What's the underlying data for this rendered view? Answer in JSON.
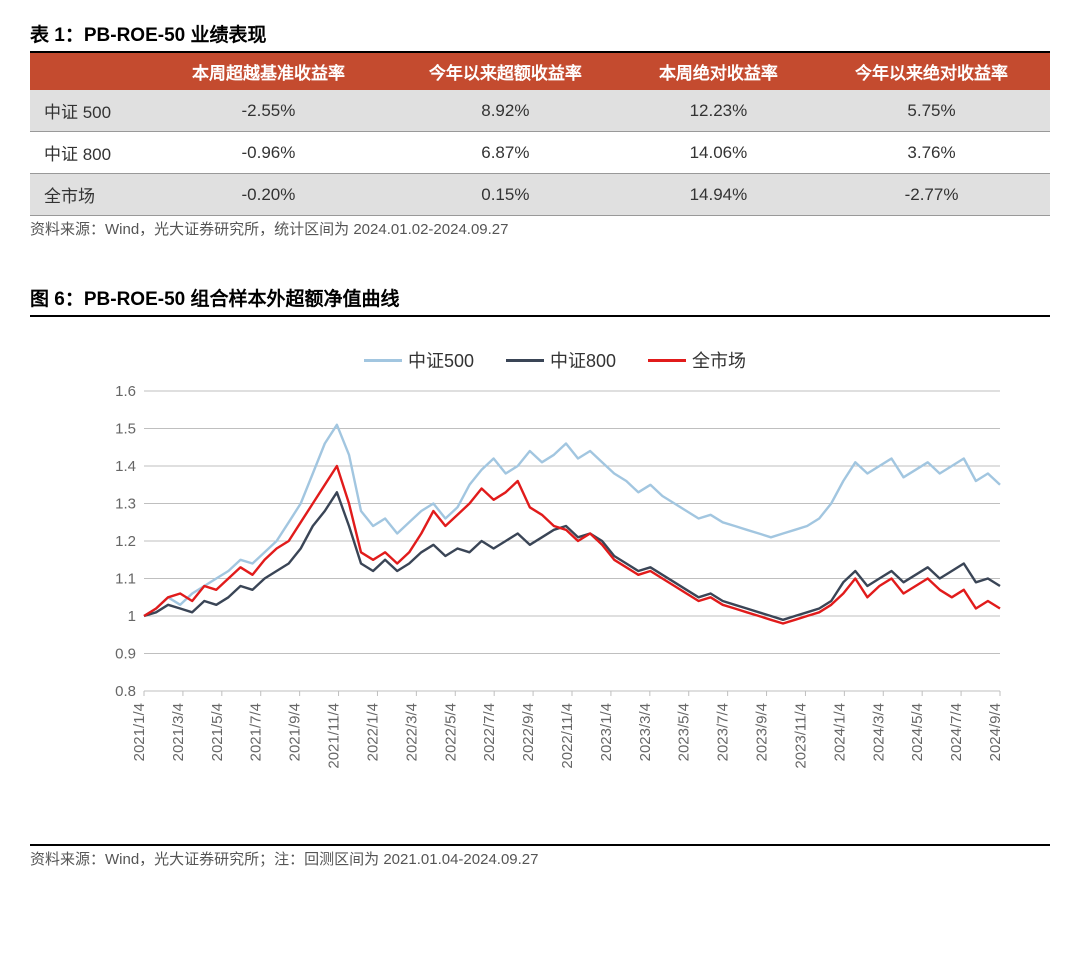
{
  "table": {
    "title": "表 1：PB-ROE-50 业绩表现",
    "header_bg": "#c44b2f",
    "header_color": "#ffffff",
    "row_gray_bg": "#e0e0e0",
    "border_color": "#999999",
    "columns": [
      "",
      "本周超越基准收益率",
      "今年以来超额收益率",
      "本周绝对收益率",
      "今年以来绝对收益率"
    ],
    "rows": [
      {
        "label": "中证 500",
        "cells": [
          "-2.55%",
          "8.92%",
          "12.23%",
          "5.75%"
        ],
        "bg": "gray"
      },
      {
        "label": "中证 800",
        "cells": [
          "-0.96%",
          "6.87%",
          "14.06%",
          "3.76%"
        ],
        "bg": "white"
      },
      {
        "label": "全市场",
        "cells": [
          "-0.20%",
          "0.15%",
          "14.94%",
          "-2.77%"
        ],
        "bg": "gray"
      }
    ],
    "source": "资料来源：Wind，光大证券研究所，统计区间为 2024.01.02-2024.09.27"
  },
  "chart": {
    "title": "图 6：PB-ROE-50 组合样本外超额净值曲线",
    "type": "line",
    "background_color": "#ffffff",
    "grid_color": "#bfbfbf",
    "axis_color": "#868686",
    "axis_fontsize": 15,
    "legend_fontsize": 18,
    "line_width": 2.4,
    "ylim": [
      0.8,
      1.6
    ],
    "ytick_step": 0.1,
    "yticks": [
      "0.8",
      "0.9",
      "1",
      "1.1",
      "1.2",
      "1.3",
      "1.4",
      "1.5",
      "1.6"
    ],
    "x_labels": [
      "2021/1/4",
      "2021/3/4",
      "2021/5/4",
      "2021/7/4",
      "2021/9/4",
      "2021/11/4",
      "2022/1/4",
      "2022/3/4",
      "2022/5/4",
      "2022/7/4",
      "2022/9/4",
      "2022/11/4",
      "2023/1/4",
      "2023/3/4",
      "2023/5/4",
      "2023/7/4",
      "2023/9/4",
      "2023/11/4",
      "2024/1/4",
      "2024/3/4",
      "2024/5/4",
      "2024/7/4",
      "2024/9/4"
    ],
    "series": [
      {
        "name": "中证500",
        "color": "#a2c6e0",
        "values": [
          1.0,
          1.02,
          1.05,
          1.03,
          1.06,
          1.08,
          1.1,
          1.12,
          1.15,
          1.14,
          1.17,
          1.2,
          1.25,
          1.3,
          1.38,
          1.46,
          1.51,
          1.43,
          1.28,
          1.24,
          1.26,
          1.22,
          1.25,
          1.28,
          1.3,
          1.26,
          1.29,
          1.35,
          1.39,
          1.42,
          1.38,
          1.4,
          1.44,
          1.41,
          1.43,
          1.46,
          1.42,
          1.44,
          1.41,
          1.38,
          1.36,
          1.33,
          1.35,
          1.32,
          1.3,
          1.28,
          1.26,
          1.27,
          1.25,
          1.24,
          1.23,
          1.22,
          1.21,
          1.22,
          1.23,
          1.24,
          1.26,
          1.3,
          1.36,
          1.41,
          1.38,
          1.4,
          1.42,
          1.37,
          1.39,
          1.41,
          1.38,
          1.4,
          1.42,
          1.36,
          1.38,
          1.35
        ]
      },
      {
        "name": "中证800",
        "color": "#3a4556",
        "values": [
          1.0,
          1.01,
          1.03,
          1.02,
          1.01,
          1.04,
          1.03,
          1.05,
          1.08,
          1.07,
          1.1,
          1.12,
          1.14,
          1.18,
          1.24,
          1.28,
          1.33,
          1.24,
          1.14,
          1.12,
          1.15,
          1.12,
          1.14,
          1.17,
          1.19,
          1.16,
          1.18,
          1.17,
          1.2,
          1.18,
          1.2,
          1.22,
          1.19,
          1.21,
          1.23,
          1.24,
          1.21,
          1.22,
          1.2,
          1.16,
          1.14,
          1.12,
          1.13,
          1.11,
          1.09,
          1.07,
          1.05,
          1.06,
          1.04,
          1.03,
          1.02,
          1.01,
          1.0,
          0.99,
          1.0,
          1.01,
          1.02,
          1.04,
          1.09,
          1.12,
          1.08,
          1.1,
          1.12,
          1.09,
          1.11,
          1.13,
          1.1,
          1.12,
          1.14,
          1.09,
          1.1,
          1.08
        ]
      },
      {
        "name": "全市场",
        "color": "#e11b1b",
        "values": [
          1.0,
          1.02,
          1.05,
          1.06,
          1.04,
          1.08,
          1.07,
          1.1,
          1.13,
          1.11,
          1.15,
          1.18,
          1.2,
          1.25,
          1.3,
          1.35,
          1.4,
          1.3,
          1.17,
          1.15,
          1.17,
          1.14,
          1.17,
          1.22,
          1.28,
          1.24,
          1.27,
          1.3,
          1.34,
          1.31,
          1.33,
          1.36,
          1.29,
          1.27,
          1.24,
          1.23,
          1.2,
          1.22,
          1.19,
          1.15,
          1.13,
          1.11,
          1.12,
          1.1,
          1.08,
          1.06,
          1.04,
          1.05,
          1.03,
          1.02,
          1.01,
          1.0,
          0.99,
          0.98,
          0.99,
          1.0,
          1.01,
          1.03,
          1.06,
          1.1,
          1.05,
          1.08,
          1.1,
          1.06,
          1.08,
          1.1,
          1.07,
          1.05,
          1.07,
          1.02,
          1.04,
          1.02
        ]
      }
    ],
    "source": "资料来源：Wind，光大证券研究所；注：回测区间为 2021.01.04-2024.09.27"
  }
}
